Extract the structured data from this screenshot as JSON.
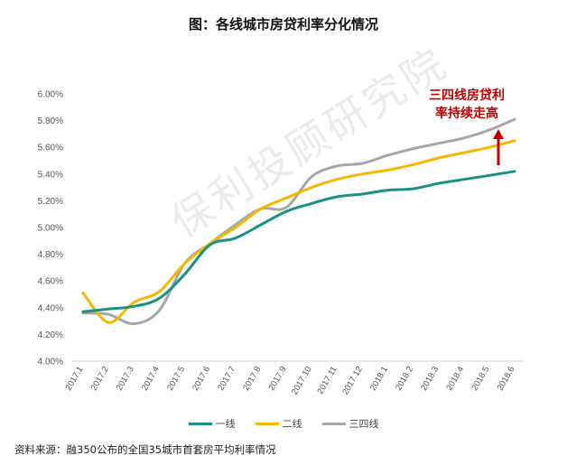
{
  "title": "图：各线城市房贷利率分化情况",
  "source": "资料来源：融350公布的全国35城市首套房平均利率情况",
  "annotation": [
    "三四线房贷利",
    "率持续走高"
  ],
  "watermark": "保利投顾研究院",
  "colors": {
    "tier1": "#1a9185",
    "tier2": "#f5b700",
    "tier34": "#a6a6a6",
    "annotation": "#c00000"
  },
  "chart_data": {
    "type": "line",
    "x": [
      "2017.1",
      "2017.2",
      "2017.3",
      "2017.4",
      "2017.5",
      "2017.6",
      "2017.7",
      "2017.8",
      "2017.9",
      "2017.10",
      "2017.11",
      "2017.12",
      "2018.1",
      "2018.2",
      "2018.3",
      "2018.4",
      "2018.5",
      "2018.6"
    ],
    "ylim": [
      4.0,
      6.0
    ],
    "yticks": [
      "4.00%",
      "4.20%",
      "4.40%",
      "4.60%",
      "4.80%",
      "5.00%",
      "5.20%",
      "5.40%",
      "5.60%",
      "5.80%",
      "6.00%"
    ],
    "series": [
      {
        "name": "一线",
        "values": [
          4.37,
          4.39,
          4.41,
          4.47,
          4.65,
          4.87,
          4.92,
          5.02,
          5.12,
          5.18,
          5.23,
          5.25,
          5.28,
          5.29,
          5.33,
          5.36,
          5.39,
          5.42
        ]
      },
      {
        "name": "二线",
        "values": [
          4.51,
          4.29,
          4.44,
          4.52,
          4.73,
          4.88,
          5.0,
          5.14,
          5.22,
          5.3,
          5.36,
          5.4,
          5.43,
          5.47,
          5.52,
          5.56,
          5.6,
          5.65
        ]
      },
      {
        "name": "三四线",
        "values": [
          4.36,
          4.35,
          4.28,
          4.38,
          4.73,
          4.88,
          5.02,
          5.14,
          5.15,
          5.38,
          5.46,
          5.48,
          5.54,
          5.59,
          5.63,
          5.67,
          5.73,
          5.81
        ]
      }
    ]
  }
}
